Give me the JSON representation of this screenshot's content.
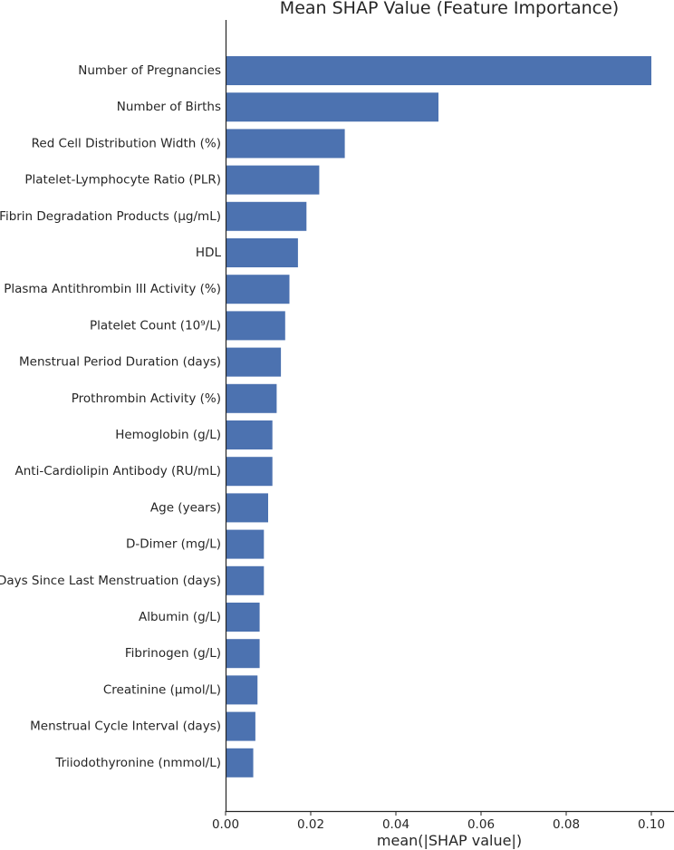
{
  "chart_data": {
    "type": "bar",
    "orientation": "horizontal",
    "title": "Mean SHAP Value (Feature Importance)",
    "xlabel": "mean(|SHAP value|)",
    "ylabel": "",
    "xlim": [
      0,
      0.1
    ],
    "xticks": [
      "0.00",
      "0.02",
      "0.04",
      "0.06",
      "0.08",
      "0.10"
    ],
    "grid": false,
    "bar_color": "#4c72b0",
    "categories": [
      "Number of Pregnancies",
      "Number of Births",
      "Red Cell Distribution Width (%)",
      "Platelet-Lymphocyte Ratio (PLR)",
      "Fibrin Degradation Products (µg/mL)",
      "HDL",
      "Plasma Antithrombin III Activity (%)",
      "Platelet Count (10⁹/L)",
      "Menstrual Period Duration (days)",
      "Prothrombin Activity (%)",
      "Hemoglobin (g/L)",
      "Anti-Cardiolipin Antibody (RU/mL)",
      "Age (years)",
      "D-Dimer (mg/L)",
      "Days Since Last Menstruation (days)",
      "Albumin (g/L)",
      "Fibrinogen (g/L)",
      "Creatinine (µmol/L)",
      "Menstrual Cycle Interval (days)",
      "Triiodothyronine (nmmol/L)"
    ],
    "values": [
      0.1,
      0.05,
      0.028,
      0.022,
      0.019,
      0.017,
      0.015,
      0.014,
      0.013,
      0.012,
      0.011,
      0.011,
      0.01,
      0.009,
      0.009,
      0.008,
      0.008,
      0.0075,
      0.007,
      0.0065
    ]
  }
}
